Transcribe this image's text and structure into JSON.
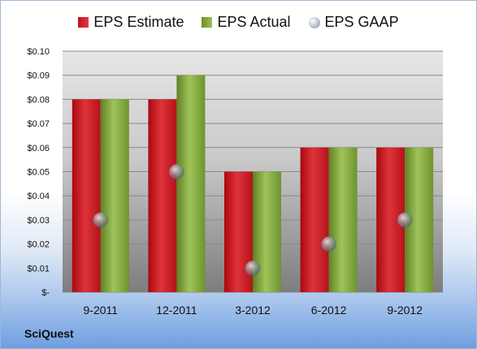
{
  "company": "SciQuest",
  "legend": {
    "estimate": "EPS Estimate",
    "actual": "EPS Actual",
    "gaap": "EPS GAAP"
  },
  "colors": {
    "estimate": "#d01f27",
    "actual": "#86ad3f",
    "gaap": "#aab3bf"
  },
  "chart_data": {
    "type": "bar",
    "categories": [
      "9-2011",
      "12-2011",
      "3-2012",
      "6-2012",
      "9-2012"
    ],
    "series": [
      {
        "name": "EPS Estimate",
        "values": [
          0.08,
          0.08,
          0.05,
          0.06,
          0.06
        ]
      },
      {
        "name": "EPS Actual",
        "values": [
          0.08,
          0.09,
          0.05,
          0.06,
          0.06
        ]
      },
      {
        "name": "EPS GAAP",
        "type": "scatter",
        "values": [
          0.03,
          0.05,
          0.01,
          0.02,
          0.03
        ]
      }
    ],
    "ylim": [
      0,
      0.1
    ],
    "yticks": [
      0,
      0.01,
      0.02,
      0.03,
      0.04,
      0.05,
      0.06,
      0.07,
      0.08,
      0.09,
      0.1
    ],
    "ytick_labels": [
      "$-",
      "$0.01",
      "$0.02",
      "$0.03",
      "$0.04",
      "$0.05",
      "$0.06",
      "$0.07",
      "$0.08",
      "$0.09",
      "$0.10"
    ],
    "grid": true,
    "legend_position": "top"
  }
}
